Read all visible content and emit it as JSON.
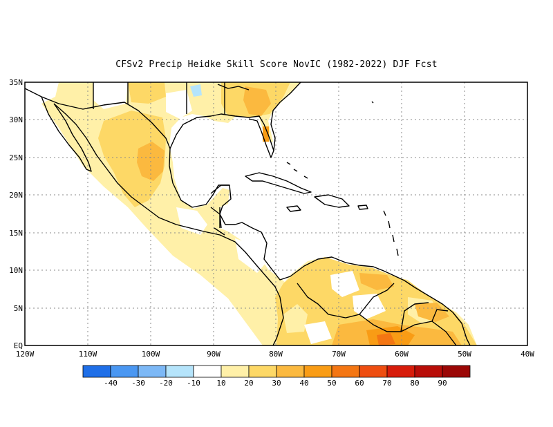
{
  "title": "CFSv2 Precip Heidke Skill Score NovIC (1982-2022) DJF Fcst",
  "lat_labels": [
    "35N",
    "30N",
    "25N",
    "20N",
    "15N",
    "10N",
    "5N",
    "EQ"
  ],
  "lon_labels": [
    "120W",
    "110W",
    "100W",
    "90W",
    "80W",
    "70W",
    "60W",
    "50W",
    "40W"
  ],
  "colorbar": {
    "labels": [
      "-40",
      "-30",
      "-20",
      "-10",
      "10",
      "20",
      "30",
      "40",
      "50",
      "60",
      "70",
      "80",
      "90"
    ],
    "colors": [
      "#1f6fe8",
      "#4a97f2",
      "#7cb8f6",
      "#b5e4fb",
      "#ffffff",
      "#fff0a8",
      "#fdd866",
      "#fbb93f",
      "#f99c15",
      "#f47613",
      "#ee4d10",
      "#d71c0a",
      "#b80d08",
      "#9b0706"
    ]
  },
  "palette": {
    "ocean": "#ffffff",
    "coast": "#000000",
    "grid": "#8a8a8a"
  }
}
